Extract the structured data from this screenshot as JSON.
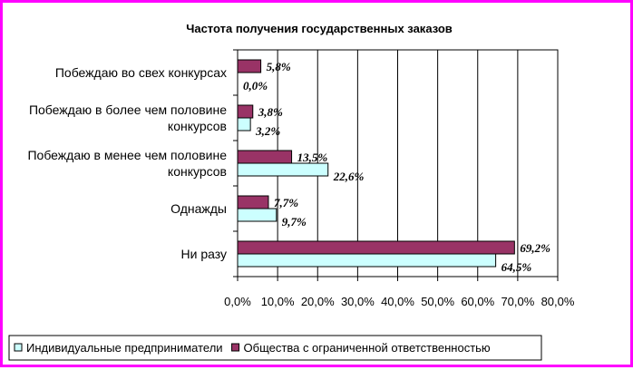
{
  "chart_data": {
    "type": "bar",
    "orientation": "horizontal",
    "title": "Частота получения государственных заказов",
    "categories": [
      [
        "Побеждаю во свех конкурсах"
      ],
      [
        "Побеждаю в более чем половине",
        "конкурсов"
      ],
      [
        "Побеждаю в менее чем половине",
        "конкурсов"
      ],
      [
        "Однажды"
      ],
      [
        "Ни разу"
      ]
    ],
    "series": [
      {
        "name": "Общества с ограниченной ответственностью",
        "color": "#993366",
        "values": [
          5.8,
          3.8,
          13.5,
          7.7,
          69.2
        ],
        "labels": [
          "5,8%",
          "3,8%",
          "13,5%",
          "7,7%",
          "69,2%"
        ]
      },
      {
        "name": "Индивидуальные предприниматели",
        "color": "#ccffff",
        "values": [
          0.0,
          3.2,
          22.6,
          9.7,
          64.5
        ],
        "labels": [
          "0,0%",
          "3,2%",
          "22,6%",
          "9,7%",
          "64,5%"
        ]
      }
    ],
    "xlim": [
      0,
      80
    ],
    "xticks": [
      "0,0%",
      "10,0%",
      "20,0%",
      "30,0%",
      "40,0%",
      "50,0%",
      "60,0%",
      "70,0%",
      "80,0%"
    ],
    "grid": true,
    "legend_position": "bottom",
    "legend_order": [
      1,
      0
    ]
  }
}
